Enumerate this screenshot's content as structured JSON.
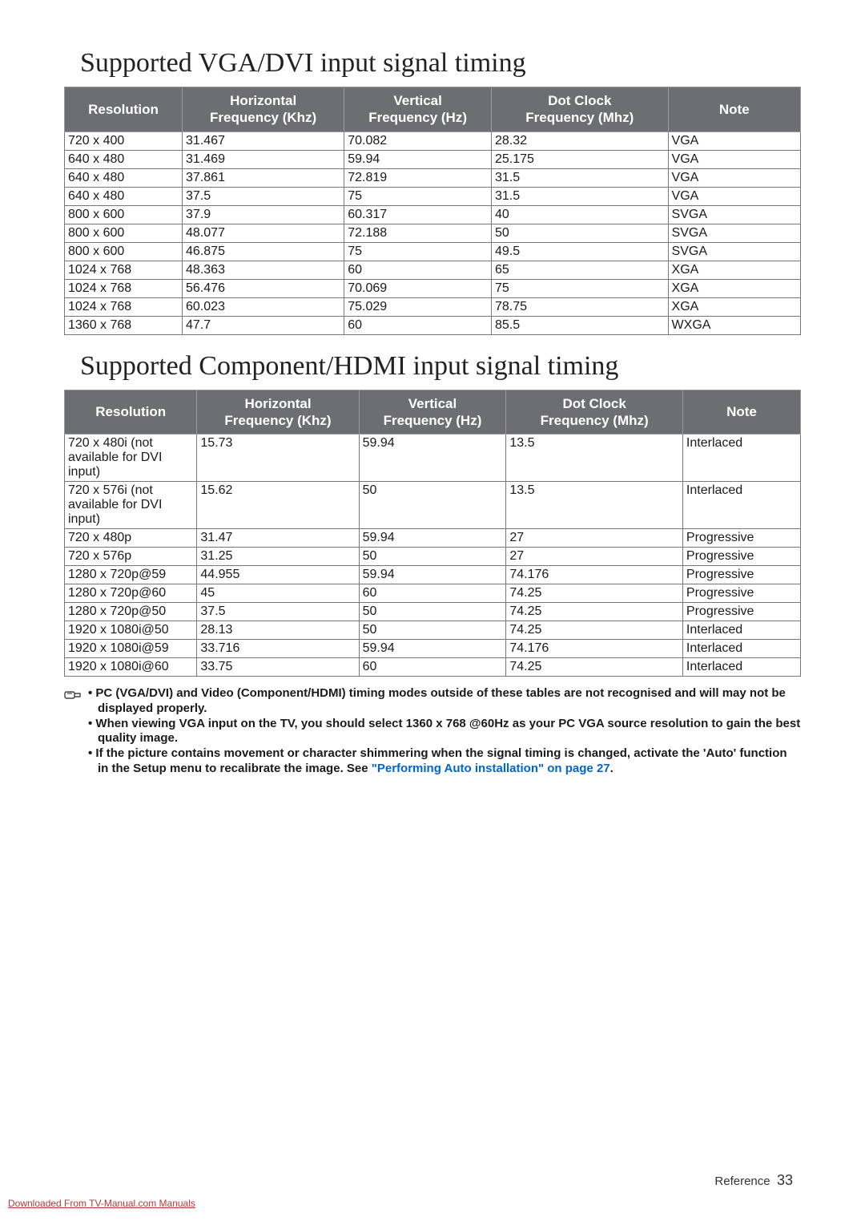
{
  "title_vga": "Supported VGA/DVI input signal timing",
  "title_comp": "Supported Component/HDMI input signal timing",
  "headers": {
    "res": "Resolution",
    "hf1": "Horizontal",
    "hf2": "Frequency (Khz)",
    "vf1": "Vertical",
    "vf2": "Frequency (Hz)",
    "dc1": "Dot Clock",
    "dc2": "Frequency (Mhz)",
    "note": "Note"
  },
  "vga_rows": [
    {
      "res": "720 x 400",
      "h": "31.467",
      "v": "70.082",
      "d": "28.32",
      "n": "VGA"
    },
    {
      "res": "640 x 480",
      "h": "31.469",
      "v": "59.94",
      "d": "25.175",
      "n": "VGA"
    },
    {
      "res": "640 x 480",
      "h": "37.861",
      "v": "72.819",
      "d": "31.5",
      "n": "VGA"
    },
    {
      "res": "640 x 480",
      "h": "37.5",
      "v": "75",
      "d": "31.5",
      "n": "VGA"
    },
    {
      "res": "800 x 600",
      "h": "37.9",
      "v": "60.317",
      "d": "40",
      "n": "SVGA"
    },
    {
      "res": "800 x 600",
      "h": "48.077",
      "v": "72.188",
      "d": "50",
      "n": "SVGA"
    },
    {
      "res": "800 x 600",
      "h": "46.875",
      "v": "75",
      "d": "49.5",
      "n": "SVGA"
    },
    {
      "res": "1024 x 768",
      "h": "48.363",
      "v": "60",
      "d": "65",
      "n": "XGA"
    },
    {
      "res": "1024 x 768",
      "h": "56.476",
      "v": "70.069",
      "d": "75",
      "n": "XGA"
    },
    {
      "res": "1024 x 768",
      "h": "60.023",
      "v": "75.029",
      "d": "78.75",
      "n": "XGA"
    },
    {
      "res": "1360 x 768",
      "h": "47.7",
      "v": "60",
      "d": "85.5",
      "n": "WXGA"
    }
  ],
  "comp_rows": [
    {
      "res": "720 x 480i (not available for DVI input)",
      "h": "15.73",
      "v": "59.94",
      "d": "13.5",
      "n": "Interlaced"
    },
    {
      "res": "720 x 576i (not available for DVI input)",
      "h": "15.62",
      "v": "50",
      "d": "13.5",
      "n": "Interlaced"
    },
    {
      "res": "720 x 480p",
      "h": "31.47",
      "v": "59.94",
      "d": "27",
      "n": "Progressive"
    },
    {
      "res": "720 x 576p",
      "h": "31.25",
      "v": "50",
      "d": "27",
      "n": "Progressive"
    },
    {
      "res": "1280 x 720p@59",
      "h": "44.955",
      "v": "59.94",
      "d": "74.176",
      "n": "Progressive"
    },
    {
      "res": "1280 x 720p@60",
      "h": "45",
      "v": "60",
      "d": "74.25",
      "n": "Progressive"
    },
    {
      "res": "1280 x 720p@50",
      "h": "37.5",
      "v": "50",
      "d": "74.25",
      "n": "Progressive"
    },
    {
      "res": "1920 x 1080i@50",
      "h": "28.13",
      "v": "50",
      "d": "74.25",
      "n": "Interlaced"
    },
    {
      "res": "1920 x 1080i@59",
      "h": "33.716",
      "v": "59.94",
      "d": "74.176",
      "n": "Interlaced"
    },
    {
      "res": "1920 x 1080i@60",
      "h": "33.75",
      "v": "60",
      "d": "74.25",
      "n": "Interlaced"
    }
  ],
  "col_widths": {
    "res": "16%",
    "h": "22%",
    "v": "20%",
    "d": "24%",
    "n": "18%"
  },
  "col_widths2": {
    "res": "18%",
    "h": "22%",
    "v": "20%",
    "d": "24%",
    "n": "16%"
  },
  "notes": {
    "n1": "PC (VGA/DVI) and Video (Component/HDMI) timing modes outside of these tables are not recognised and will may not be displayed properly.",
    "n2": "When viewing VGA input on the TV, you should select 1360 x 768 @60Hz as your PC VGA source resolution to gain the best quality image.",
    "n3a": "If the picture contains movement or character shimmering when the signal timing is changed, activate the 'Auto' function in the Setup menu to recalibrate the image. See ",
    "n3link": "\"Performing Auto installation\" on page 27",
    "n3b": "."
  },
  "footer": {
    "ref": "Reference",
    "page": "33",
    "download": "Downloaded From TV-Manual.com Manuals"
  },
  "colors": {
    "header_bg": "#6d6e71",
    "header_fg": "#ffffff",
    "border": "#777777",
    "link": "#0066cc",
    "download": "#b33a3a"
  }
}
